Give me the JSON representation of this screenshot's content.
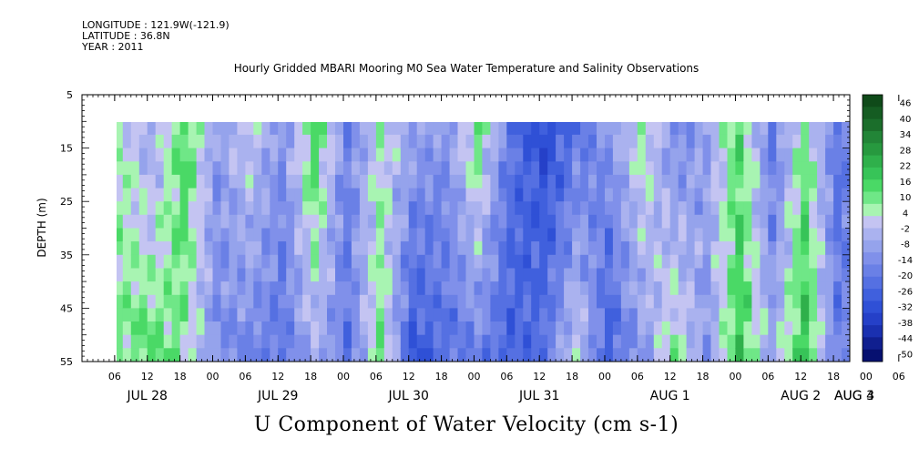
{
  "header": {
    "longitude": "LONGITUDE : 121.9W(-121.9)",
    "latitude": "LATITUDE : 36.8N",
    "year": "YEAR : 2011"
  },
  "chart_data": {
    "type": "heatmap",
    "title": "Hourly Gridded MBARI Mooring M0 Sea Water Temperature and Salinity Observations",
    "main_title": "U Component of Water Velocity (cm s-1)",
    "ylabel": "DEPTH (m)",
    "xlabel": "",
    "y_ticks": [
      5,
      15,
      25,
      35,
      45,
      55
    ],
    "ylim": [
      55,
      5
    ],
    "data_depth_range": [
      10,
      55
    ],
    "x_hour_ticks": [
      "06",
      "12",
      "18",
      "00",
      "06",
      "12",
      "18",
      "00",
      "06",
      "12",
      "18",
      "00",
      "06",
      "12",
      "18",
      "00",
      "06",
      "12",
      "18",
      "00",
      "06",
      "12",
      "18",
      "00",
      "06",
      "12",
      "18",
      "00",
      "06",
      "12",
      "18",
      "00"
    ],
    "x_day_labels": [
      "JUL 28",
      "JUL 29",
      "JUL 30",
      "JUL 31",
      "AUG  1",
      "AUG  2",
      "AUG  3",
      "AUG  4"
    ],
    "x_range_hours": [
      0,
      141
    ],
    "data_start_hour": 6,
    "colorbar": {
      "labels": [
        "46",
        "40",
        "34",
        "28",
        "22",
        "16",
        "10",
        "4",
        "-2",
        "-8",
        "-14",
        "-20",
        "-26",
        "-32",
        "-38",
        "-44",
        "-50"
      ],
      "colors": [
        "#0f4a19",
        "#155c22",
        "#1b6e2b",
        "#228537",
        "#27993f",
        "#2fb04b",
        "#37c458",
        "#4ad966",
        "#6fe787",
        "#a8f4b2",
        "#c4c4f2",
        "#aab2ef",
        "#95a3ec",
        "#8090ea",
        "#6a80e6",
        "#5570e2",
        "#4060dd",
        "#2f50d6",
        "#2540c8",
        "#1a30b0",
        "#101f8f",
        "#061070"
      ]
    },
    "profile": {
      "hours": [
        6,
        12,
        18,
        24,
        30,
        36,
        42,
        48,
        54,
        60,
        66,
        72,
        78,
        84,
        90,
        96,
        102,
        108,
        114,
        120,
        126,
        132,
        138,
        141
      ],
      "values_top": [
        4,
        -8,
        14,
        -10,
        2,
        -12,
        14,
        -16,
        2,
        -8,
        -12,
        10,
        -20,
        -32,
        -20,
        -12,
        6,
        -14,
        -8,
        12,
        -20,
        8,
        -20,
        -14
      ],
      "values_bottom": [
        8,
        12,
        6,
        -14,
        -16,
        -20,
        -6,
        -20,
        10,
        -30,
        -22,
        -18,
        -26,
        -20,
        2,
        -26,
        -12,
        8,
        -12,
        16,
        -6,
        18,
        -18,
        -14
      ]
    }
  }
}
